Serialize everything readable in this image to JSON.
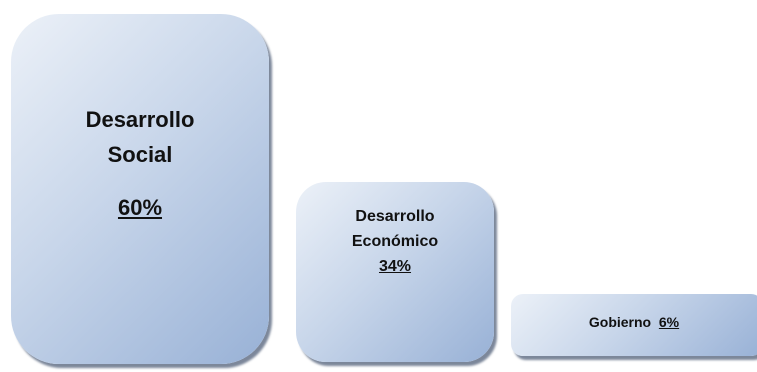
{
  "blocks": [
    {
      "line1": "Desarrollo",
      "line2": "Social",
      "percent": "60%"
    },
    {
      "line1": "Desarrollo",
      "line2": "Económico",
      "percent": "34%"
    },
    {
      "label": "Gobierno",
      "percent": "6%"
    }
  ],
  "colors": {
    "fill_light": "#ecf1f8",
    "fill_dark": "#98b1d6",
    "shadow": "#505f78"
  }
}
